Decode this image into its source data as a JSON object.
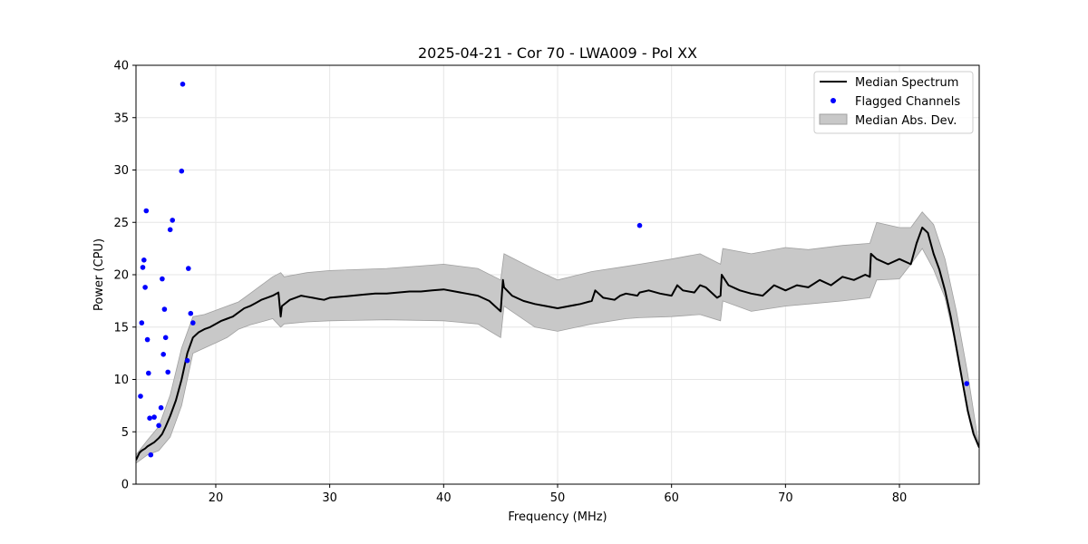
{
  "colors": {
    "line": "#000000",
    "points": "#0000ff",
    "band": "#c8c8c8",
    "band_edge": "#a0a0a0",
    "grid": "#e6e6e6"
  },
  "chart_data": {
    "type": "line",
    "title": "2025-04-21 - Cor 70 - LWA009 - Pol XX",
    "xlabel": "Frequency (MHz)",
    "ylabel": "Power (CPU)",
    "xlim": [
      13.0,
      87.0
    ],
    "ylim": [
      0,
      40
    ],
    "xticks": [
      20,
      30,
      40,
      50,
      60,
      70,
      80
    ],
    "yticks": [
      0,
      5,
      10,
      15,
      20,
      25,
      30,
      35,
      40
    ],
    "grid": true,
    "legend_position": "top-right",
    "legend": [
      "Median Spectrum",
      "Flagged Channels",
      "Median Abs. Dev."
    ],
    "series": [
      {
        "name": "Median Spectrum",
        "kind": "line",
        "x": [
          13.0,
          13.3,
          13.5,
          13.8,
          14.0,
          14.3,
          14.6,
          15.0,
          15.3,
          15.6,
          16.0,
          16.5,
          17.0,
          17.5,
          18.0,
          18.5,
          19.0,
          19.5,
          20.0,
          20.5,
          21.0,
          21.5,
          22.0,
          22.5,
          23.0,
          23.5,
          24.0,
          24.5,
          25.0,
          25.5,
          25.7,
          25.8,
          26.5,
          27.0,
          27.5,
          28.0,
          28.5,
          29.0,
          29.5,
          30.0,
          31.0,
          32.0,
          33.0,
          34.0,
          35.0,
          36.0,
          37.0,
          38.0,
          39.0,
          40.0,
          41.0,
          42.0,
          43.0,
          44.0,
          45.0,
          45.2,
          45.3,
          46.0,
          47.0,
          48.0,
          49.0,
          50.0,
          51.0,
          52.0,
          53.0,
          53.3,
          54.0,
          55.0,
          55.5,
          56.0,
          57.0,
          57.2,
          58.0,
          59.0,
          60.0,
          60.5,
          61.0,
          62.0,
          62.5,
          63.0,
          64.0,
          64.3,
          64.4,
          65.0,
          66.0,
          67.0,
          68.0,
          69.0,
          70.0,
          71.0,
          72.0,
          73.0,
          74.0,
          75.0,
          76.0,
          77.0,
          77.4,
          77.5,
          78.0,
          79.0,
          80.0,
          81.0,
          81.5,
          82.0,
          82.5,
          83.0,
          83.5,
          84.0,
          84.5,
          85.0,
          85.5,
          86.0,
          86.5,
          87.0
        ],
        "y": [
          2.3,
          3.0,
          3.2,
          3.4,
          3.6,
          3.8,
          4.0,
          4.4,
          4.8,
          5.5,
          6.5,
          8.0,
          10.0,
          12.5,
          14.0,
          14.5,
          14.8,
          15.0,
          15.3,
          15.6,
          15.8,
          16.0,
          16.4,
          16.8,
          17.0,
          17.3,
          17.6,
          17.8,
          18.0,
          18.3,
          16.0,
          17.0,
          17.6,
          17.8,
          18.0,
          17.9,
          17.8,
          17.7,
          17.6,
          17.8,
          17.9,
          18.0,
          18.1,
          18.2,
          18.2,
          18.3,
          18.4,
          18.4,
          18.5,
          18.6,
          18.4,
          18.2,
          18.0,
          17.5,
          16.5,
          19.5,
          18.8,
          18.0,
          17.5,
          17.2,
          17.0,
          16.8,
          17.0,
          17.2,
          17.5,
          18.5,
          17.8,
          17.6,
          18.0,
          18.2,
          18.0,
          18.3,
          18.5,
          18.2,
          18.0,
          19.0,
          18.5,
          18.3,
          19.0,
          18.8,
          17.8,
          18.0,
          20.0,
          19.0,
          18.5,
          18.2,
          18.0,
          19.0,
          18.5,
          19.0,
          18.8,
          19.5,
          19.0,
          19.8,
          19.5,
          20.0,
          19.8,
          22.0,
          21.5,
          21.0,
          21.5,
          21.0,
          23.0,
          24.5,
          24.0,
          22.0,
          20.5,
          18.5,
          16.0,
          13.0,
          10.0,
          7.0,
          4.8,
          3.5
        ]
      },
      {
        "name": "Flagged Channels",
        "kind": "scatter",
        "x": [
          13.4,
          13.5,
          13.6,
          13.7,
          13.8,
          13.9,
          14.0,
          14.1,
          14.2,
          14.3,
          14.6,
          15.0,
          15.2,
          15.3,
          15.4,
          15.5,
          15.6,
          15.8,
          16.0,
          16.2,
          17.0,
          17.1,
          17.5,
          17.6,
          17.8,
          18.0,
          57.2,
          85.9
        ],
        "y": [
          8.4,
          15.4,
          20.7,
          21.4,
          18.8,
          26.1,
          13.8,
          10.6,
          6.3,
          2.8,
          6.4,
          5.6,
          7.3,
          19.6,
          12.4,
          16.7,
          14.0,
          10.7,
          24.3,
          25.2,
          29.9,
          38.2,
          11.8,
          20.6,
          16.3,
          15.4,
          24.7,
          9.6
        ]
      },
      {
        "name": "Median Abs. Dev.",
        "kind": "band",
        "x": [
          13.0,
          14.0,
          15.0,
          16.0,
          17.0,
          18.0,
          19.0,
          20.0,
          21.0,
          22.0,
          23.0,
          24.0,
          25.0,
          25.7,
          26.0,
          28.0,
          30.0,
          35.0,
          40.0,
          43.0,
          45.0,
          45.3,
          48.0,
          50.0,
          53.0,
          56.0,
          57.2,
          60.0,
          62.5,
          64.3,
          64.5,
          67.0,
          70.0,
          72.0,
          75.0,
          77.4,
          78.0,
          80.0,
          81.0,
          82.0,
          83.0,
          84.0,
          85.0,
          86.0,
          87.0
        ],
        "lower": [
          2.0,
          2.8,
          3.2,
          4.5,
          7.5,
          12.5,
          13.0,
          13.5,
          14.0,
          14.8,
          15.2,
          15.5,
          15.8,
          15.0,
          15.3,
          15.5,
          15.6,
          15.7,
          15.6,
          15.3,
          14.0,
          17.0,
          15.0,
          14.6,
          15.3,
          15.8,
          15.9,
          16.0,
          16.2,
          15.6,
          17.5,
          16.5,
          17.0,
          17.2,
          17.5,
          17.8,
          19.5,
          19.6,
          21.0,
          22.5,
          20.5,
          17.8,
          13.0,
          7.0,
          3.5
        ],
        "upper": [
          2.8,
          4.2,
          5.5,
          8.5,
          13.0,
          16.0,
          16.2,
          16.6,
          17.0,
          17.4,
          18.2,
          19.0,
          19.8,
          20.2,
          19.8,
          20.2,
          20.4,
          20.6,
          21.0,
          20.6,
          19.5,
          22.0,
          20.5,
          19.5,
          20.3,
          20.8,
          21.0,
          21.5,
          22.0,
          21.0,
          22.5,
          22.0,
          22.6,
          22.4,
          22.8,
          23.0,
          25.0,
          24.5,
          24.5,
          26.0,
          24.8,
          21.5,
          16.5,
          10.5,
          3.5
        ]
      }
    ]
  }
}
